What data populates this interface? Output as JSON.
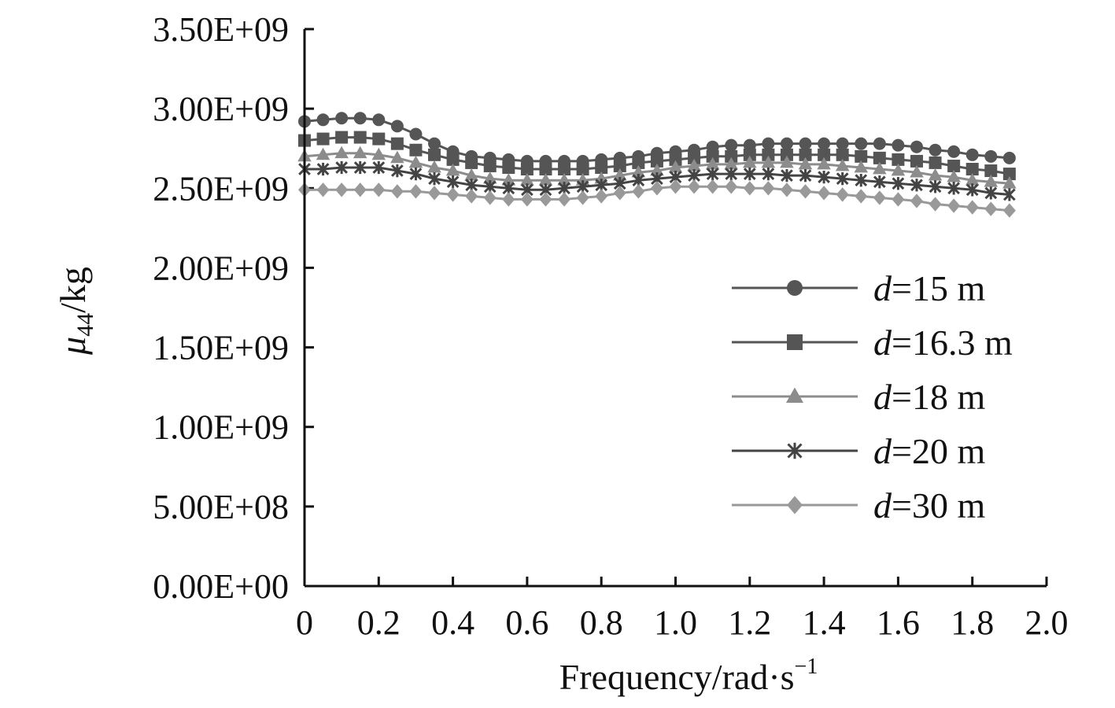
{
  "chart_data": {
    "type": "line",
    "title": "",
    "xlabel": {
      "main": "Frequency/rad·s",
      "sup": "−1"
    },
    "ylabel": {
      "symbol": "μ",
      "sub": "44",
      "unit": "/kg"
    },
    "xlim": [
      0,
      2.0
    ],
    "ylim": [
      0,
      3500000000
    ],
    "xticks": [
      0,
      0.2,
      0.4,
      0.6,
      0.8,
      1.0,
      1.2,
      1.4,
      1.6,
      1.8,
      2.0
    ],
    "xtick_labels": [
      "0",
      "0.2",
      "0.4",
      "0.6",
      "0.8",
      "1.0",
      "1.2",
      "1.4",
      "1.6",
      "1.8",
      "2.0"
    ],
    "yticks": [
      0,
      500000000,
      1000000000,
      1500000000,
      2000000000,
      2500000000,
      3000000000,
      3500000000
    ],
    "ytick_labels": [
      "0.00E+00",
      "5.00E+08",
      "1.00E+09",
      "1.50E+09",
      "2.00E+09",
      "2.50E+09",
      "3.00E+09",
      "3.50E+09"
    ],
    "grid": false,
    "legend_position": "right",
    "x": [
      0,
      0.05,
      0.1,
      0.15,
      0.2,
      0.25,
      0.3,
      0.35,
      0.4,
      0.45,
      0.5,
      0.55,
      0.6,
      0.65,
      0.7,
      0.75,
      0.8,
      0.85,
      0.9,
      0.95,
      1.0,
      1.05,
      1.1,
      1.15,
      1.2,
      1.25,
      1.3,
      1.35,
      1.4,
      1.45,
      1.5,
      1.55,
      1.6,
      1.65,
      1.7,
      1.75,
      1.8,
      1.85,
      1.9
    ],
    "series": [
      {
        "name_prefix": "d",
        "name_suffix": "=15 m",
        "marker": "circle",
        "color": "#555555",
        "values": [
          2920000000.0,
          2930000000.0,
          2940000000.0,
          2940000000.0,
          2930000000.0,
          2890000000.0,
          2840000000.0,
          2780000000.0,
          2730000000.0,
          2700000000.0,
          2690000000.0,
          2680000000.0,
          2670000000.0,
          2670000000.0,
          2670000000.0,
          2670000000.0,
          2680000000.0,
          2690000000.0,
          2700000000.0,
          2720000000.0,
          2730000000.0,
          2740000000.0,
          2760000000.0,
          2770000000.0,
          2770000000.0,
          2780000000.0,
          2780000000.0,
          2780000000.0,
          2780000000.0,
          2780000000.0,
          2780000000.0,
          2780000000.0,
          2770000000.0,
          2760000000.0,
          2740000000.0,
          2730000000.0,
          2710000000.0,
          2700000000.0,
          2690000000.0
        ]
      },
      {
        "name_prefix": "d",
        "name_suffix": "=16.3 m",
        "marker": "square",
        "color": "#555555",
        "values": [
          2800000000.0,
          2810000000.0,
          2820000000.0,
          2820000000.0,
          2810000000.0,
          2780000000.0,
          2740000000.0,
          2710000000.0,
          2680000000.0,
          2660000000.0,
          2640000000.0,
          2630000000.0,
          2620000000.0,
          2620000000.0,
          2620000000.0,
          2620000000.0,
          2630000000.0,
          2640000000.0,
          2660000000.0,
          2670000000.0,
          2680000000.0,
          2690000000.0,
          2700000000.0,
          2700000000.0,
          2710000000.0,
          2710000000.0,
          2710000000.0,
          2710000000.0,
          2710000000.0,
          2710000000.0,
          2700000000.0,
          2690000000.0,
          2680000000.0,
          2670000000.0,
          2660000000.0,
          2640000000.0,
          2620000000.0,
          2610000000.0,
          2590000000.0
        ]
      },
      {
        "name_prefix": "d",
        "name_suffix": "=18 m",
        "marker": "triangle",
        "color": "#8c8c8c",
        "values": [
          2700000000.0,
          2710000000.0,
          2720000000.0,
          2720000000.0,
          2710000000.0,
          2690000000.0,
          2660000000.0,
          2630000000.0,
          2610000000.0,
          2580000000.0,
          2560000000.0,
          2550000000.0,
          2550000000.0,
          2550000000.0,
          2550000000.0,
          2550000000.0,
          2560000000.0,
          2580000000.0,
          2600000000.0,
          2610000000.0,
          2630000000.0,
          2640000000.0,
          2650000000.0,
          2650000000.0,
          2660000000.0,
          2660000000.0,
          2660000000.0,
          2650000000.0,
          2650000000.0,
          2640000000.0,
          2630000000.0,
          2620000000.0,
          2610000000.0,
          2600000000.0,
          2580000000.0,
          2570000000.0,
          2550000000.0,
          2540000000.0,
          2530000000.0
        ]
      },
      {
        "name_prefix": "d",
        "name_suffix": "=20 m",
        "marker": "asterisk",
        "color": "#444444",
        "values": [
          2620000000.0,
          2620000000.0,
          2630000000.0,
          2630000000.0,
          2630000000.0,
          2610000000.0,
          2590000000.0,
          2560000000.0,
          2540000000.0,
          2520000000.0,
          2510000000.0,
          2500000000.0,
          2490000000.0,
          2490000000.0,
          2500000000.0,
          2510000000.0,
          2520000000.0,
          2530000000.0,
          2550000000.0,
          2560000000.0,
          2570000000.0,
          2580000000.0,
          2590000000.0,
          2590000000.0,
          2590000000.0,
          2590000000.0,
          2580000000.0,
          2580000000.0,
          2570000000.0,
          2560000000.0,
          2550000000.0,
          2540000000.0,
          2530000000.0,
          2520000000.0,
          2510000000.0,
          2500000000.0,
          2490000000.0,
          2470000000.0,
          2460000000.0
        ]
      },
      {
        "name_prefix": "d",
        "name_suffix": "=30 m",
        "marker": "diamond",
        "color": "#999999",
        "values": [
          2490000000.0,
          2490000000.0,
          2490000000.0,
          2490000000.0,
          2490000000.0,
          2480000000.0,
          2480000000.0,
          2470000000.0,
          2460000000.0,
          2450000000.0,
          2440000000.0,
          2430000000.0,
          2430000000.0,
          2430000000.0,
          2430000000.0,
          2440000000.0,
          2450000000.0,
          2470000000.0,
          2480000000.0,
          2500000000.0,
          2510000000.0,
          2510000000.0,
          2510000000.0,
          2510000000.0,
          2500000000.0,
          2500000000.0,
          2490000000.0,
          2480000000.0,
          2470000000.0,
          2460000000.0,
          2450000000.0,
          2440000000.0,
          2430000000.0,
          2420000000.0,
          2400000000.0,
          2390000000.0,
          2380000000.0,
          2370000000.0,
          2360000000.0
        ]
      }
    ]
  }
}
